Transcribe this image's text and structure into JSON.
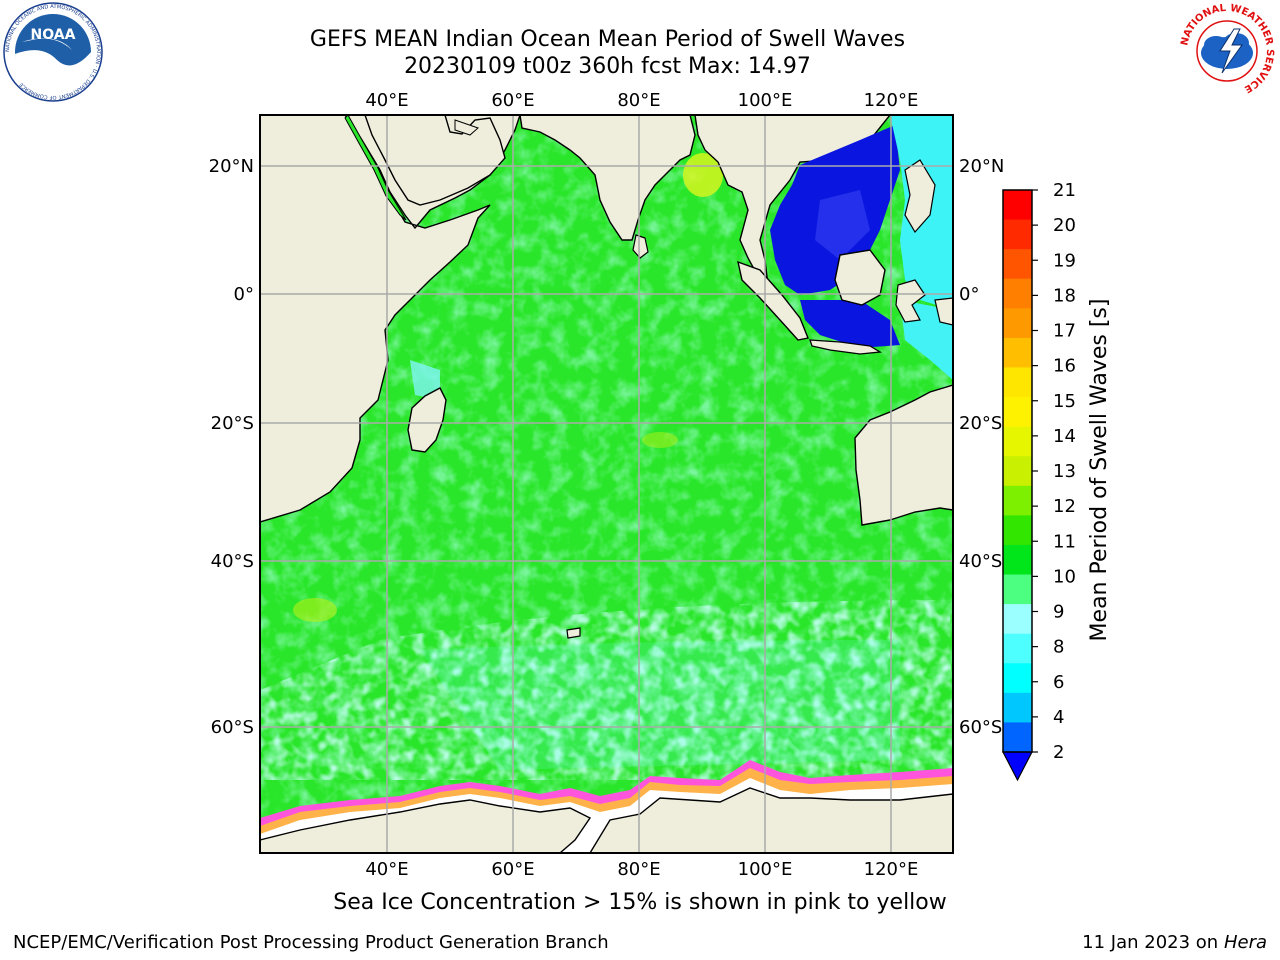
{
  "header": {
    "title_line1": "GEFS MEAN Indian Ocean Mean Period of Swell Waves",
    "title_line2": "20230109 t00z 360h fcst   Max: 14.97"
  },
  "logos": {
    "noaa": {
      "text": "NOAA",
      "ring_text": "NATIONAL OCEANIC AND ATMOSPHERIC ADMINISTRATION · U.S. DEPARTMENT OF COMMERCE"
    },
    "nws": {
      "ring_text": "NATIONAL WEATHER SERVICE"
    }
  },
  "map": {
    "lon_ticks": [
      "40°E",
      "60°E",
      "80°E",
      "100°E",
      "120°E"
    ],
    "lat_ticks": [
      "20°N",
      "0°",
      "20°S",
      "40°S",
      "60°S"
    ],
    "colors": {
      "land": "#efeedd",
      "ocean_main": "#2ae62a",
      "ocean_light": "#5cf55c",
      "mint": "#50f59a",
      "cyan_light": "#9cffff",
      "yellow_green": "#d4f41e",
      "blue_deep": "#0012e6",
      "ice_pink": "#ff55dd",
      "ice_orange": "#ffb24a",
      "ice_white": "#ffffff"
    }
  },
  "colorbar": {
    "label": "Mean Period of Swell Waves [s]",
    "tick_labels": [
      "21",
      "20",
      "19",
      "18",
      "17",
      "16",
      "15",
      "14",
      "13",
      "12",
      "11",
      "10",
      "9",
      "8",
      "6",
      "4",
      "2"
    ],
    "bands_top_to_bottom": [
      "#ff0000",
      "#ff2a00",
      "#ff5500",
      "#ff7f00",
      "#ff9900",
      "#ffbf00",
      "#ffe600",
      "#fff200",
      "#e6f500",
      "#c8f000",
      "#7df000",
      "#33e600",
      "#00e61a",
      "#4dff80",
      "#9cffff",
      "#4dffff",
      "#00ffff",
      "#00c8ff",
      "#0064ff"
    ],
    "extend_color": "#0000ff"
  },
  "caption": "Sea Ice Concentration > 15% is shown in pink to yellow",
  "footer": {
    "left": "NCEP/EMC/Verification Post Processing Product Generation Branch",
    "right_prefix": "11 Jan 2023 on ",
    "right_host": "Hera"
  }
}
